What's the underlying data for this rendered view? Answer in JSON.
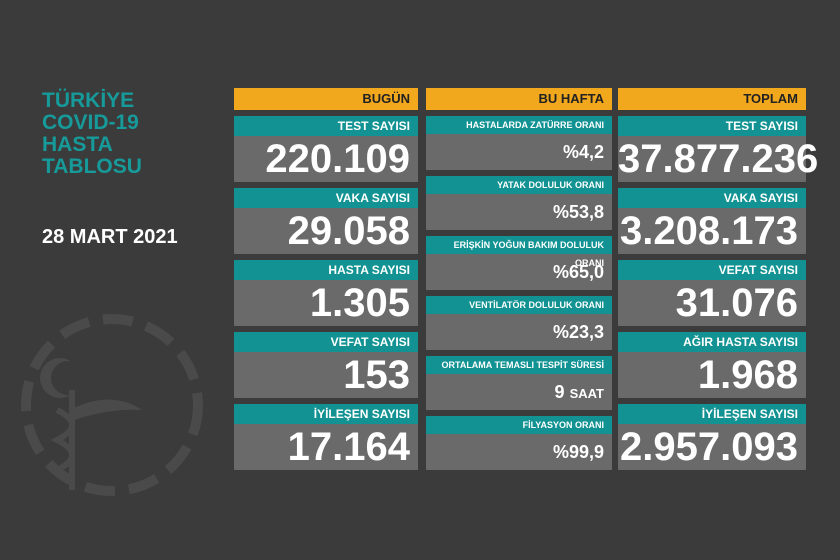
{
  "title": [
    "TÜRKİYE",
    "COVID-19",
    "HASTA",
    "TABLOSU"
  ],
  "date": "28 MART 2021",
  "columns": [
    {
      "header": "BUGÜN",
      "items": [
        {
          "label": "TEST SAYISI",
          "value": "220.109"
        },
        {
          "label": "VAKA SAYISI",
          "value": "29.058"
        },
        {
          "label": "HASTA SAYISI",
          "value": "1.305"
        },
        {
          "label": "VEFAT SAYISI",
          "value": "153"
        },
        {
          "label": "İYİLEŞEN SAYISI",
          "value": "17.164"
        }
      ]
    },
    {
      "header": "BU HAFTA",
      "items": [
        {
          "label": "HASTALARDA ZATÜRRE ORANI",
          "value": "%4,2"
        },
        {
          "label": "YATAK DOLULUK ORANI",
          "value": "%53,8"
        },
        {
          "label": "ERİŞKİN YOĞUN BAKIM DOLULUK ORANI",
          "value": "%65,0"
        },
        {
          "label": "VENTİLATÖR DOLULUK ORANI",
          "value": "%23,3"
        },
        {
          "label": "ORTALAMA TEMASLI TESPİT SÜRESİ",
          "value": "9",
          "unit": "SAAT"
        },
        {
          "label": "FİLYASYON ORANI",
          "value": "%99,9"
        }
      ]
    },
    {
      "header": "TOPLAM",
      "items": [
        {
          "label": "TEST SAYISI",
          "value": "37.877.236"
        },
        {
          "label": "VAKA SAYISI",
          "value": "3.208.173"
        },
        {
          "label": "VEFAT SAYISI",
          "value": "31.076"
        },
        {
          "label": "AĞIR HASTA SAYISI",
          "value": "1.968"
        },
        {
          "label": "İYİLEŞEN SAYISI",
          "value": "2.957.093"
        }
      ]
    }
  ]
}
